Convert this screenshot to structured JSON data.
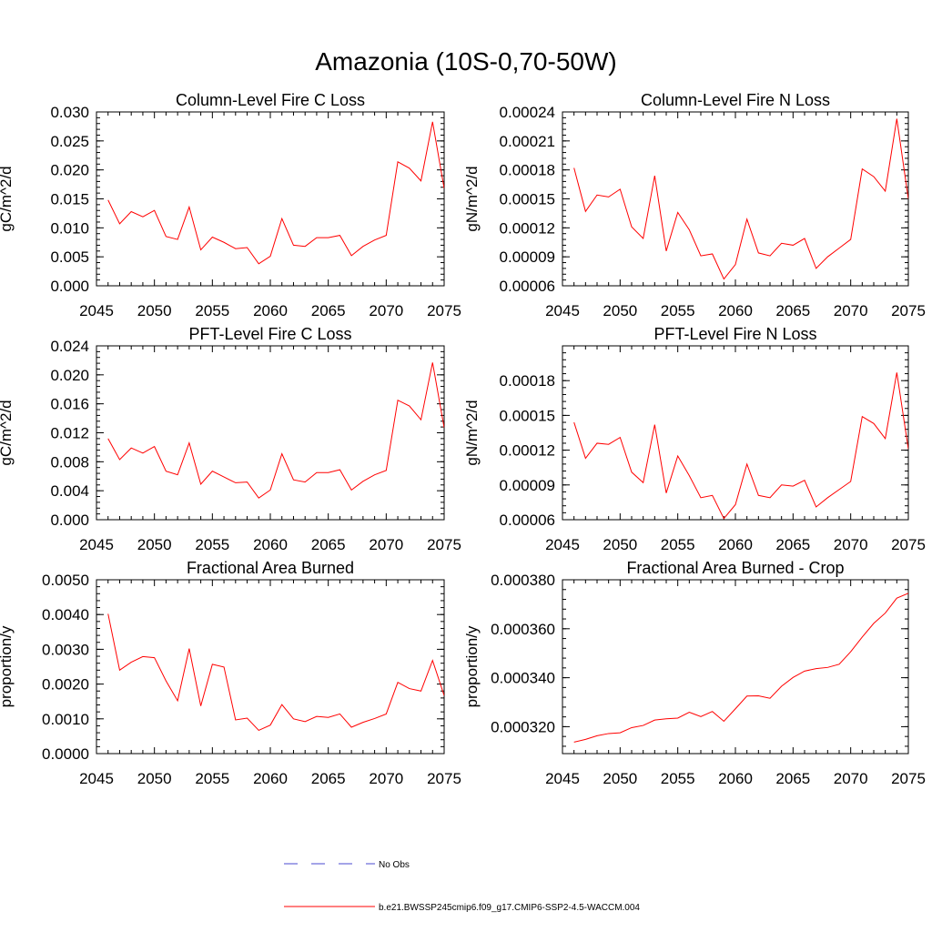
{
  "figure": {
    "title": "Amazonia (10S-0,70-50W)"
  },
  "legend": {
    "entries": [
      {
        "label": "No Obs",
        "color": "#4a4ad0",
        "style": "dashed"
      },
      {
        "label": "b.e21.BWSSP245cmip6.f09_g17.CMIP6-SSP2-4.5-WACCM.004",
        "color": "#ff0000",
        "style": "solid"
      }
    ]
  },
  "chart_data": [
    {
      "type": "line",
      "title": "Column-Level Fire C Loss",
      "ylabel": "gC/m^2/d",
      "xlim": [
        2045,
        2075
      ],
      "ylim": [
        0.0,
        0.03
      ],
      "x_ticks": [
        "2045",
        "2050",
        "2055",
        "2060",
        "2065",
        "2070",
        "2075"
      ],
      "y_ticks": [
        "0.000",
        "0.005",
        "0.010",
        "0.015",
        "0.020",
        "0.025",
        "0.030"
      ],
      "series": [
        {
          "color": "#ff0000",
          "x": [
            2046,
            2047,
            2048,
            2049,
            2050,
            2051,
            2052,
            2053,
            2054,
            2055,
            2056,
            2057,
            2058,
            2059,
            2060,
            2061,
            2062,
            2063,
            2064,
            2065,
            2066,
            2067,
            2068,
            2069,
            2070,
            2071,
            2072,
            2073,
            2074,
            2075
          ],
          "values": [
            0.0148,
            0.0107,
            0.0128,
            0.0119,
            0.013,
            0.0085,
            0.008,
            0.0136,
            0.0062,
            0.0084,
            0.0075,
            0.0064,
            0.0066,
            0.0038,
            0.0051,
            0.0116,
            0.007,
            0.0068,
            0.0083,
            0.0083,
            0.0087,
            0.0052,
            0.0068,
            0.0079,
            0.0087,
            0.0214,
            0.0203,
            0.0181,
            0.0283,
            0.0168
          ]
        }
      ]
    },
    {
      "type": "line",
      "title": "Column-Level Fire N Loss",
      "ylabel": "gN/m^2/d",
      "xlim": [
        2045,
        2075
      ],
      "ylim": [
        6e-05,
        0.00024
      ],
      "x_ticks": [
        "2045",
        "2050",
        "2055",
        "2060",
        "2065",
        "2070",
        "2075"
      ],
      "y_ticks": [
        "0.00006",
        "0.00009",
        "0.00012",
        "0.00015",
        "0.00018",
        "0.00021",
        "0.00024"
      ],
      "series": [
        {
          "color": "#ff0000",
          "x": [
            2046,
            2047,
            2048,
            2049,
            2050,
            2051,
            2052,
            2053,
            2054,
            2055,
            2056,
            2057,
            2058,
            2059,
            2060,
            2061,
            2062,
            2063,
            2064,
            2065,
            2066,
            2067,
            2068,
            2069,
            2070,
            2071,
            2072,
            2073,
            2074,
            2075
          ],
          "values": [
            0.000182,
            0.000137,
            0.000154,
            0.000152,
            0.00016,
            0.000121,
            0.000109,
            0.000174,
            9.6e-05,
            0.000136,
            0.000118,
            9.1e-05,
            9.3e-05,
            6.7e-05,
            8.2e-05,
            0.000129,
            9.4e-05,
            9.1e-05,
            0.000104,
            0.000102,
            0.000109,
            7.8e-05,
            9e-05,
            9.9e-05,
            0.000108,
            0.000181,
            0.000173,
            0.000158,
            0.000233,
            0.00015
          ]
        }
      ]
    },
    {
      "type": "line",
      "title": "PFT-Level Fire C Loss",
      "ylabel": "gC/m^2/d",
      "xlim": [
        2045,
        2075
      ],
      "ylim": [
        0.0,
        0.024
      ],
      "x_ticks": [
        "2045",
        "2050",
        "2055",
        "2060",
        "2065",
        "2070",
        "2075"
      ],
      "y_ticks": [
        "0.000",
        "0.004",
        "0.008",
        "0.012",
        "0.016",
        "0.020",
        "0.024"
      ],
      "series": [
        {
          "color": "#ff0000",
          "x": [
            2046,
            2047,
            2048,
            2049,
            2050,
            2051,
            2052,
            2053,
            2054,
            2055,
            2056,
            2057,
            2058,
            2059,
            2060,
            2061,
            2062,
            2063,
            2064,
            2065,
            2066,
            2067,
            2068,
            2069,
            2070,
            2071,
            2072,
            2073,
            2074,
            2075
          ],
          "values": [
            0.0112,
            0.0083,
            0.0099,
            0.0092,
            0.0101,
            0.0067,
            0.0062,
            0.0106,
            0.0049,
            0.0067,
            0.0059,
            0.0051,
            0.0052,
            0.003,
            0.0041,
            0.0091,
            0.0055,
            0.0052,
            0.0065,
            0.0065,
            0.0069,
            0.0041,
            0.0053,
            0.0062,
            0.0068,
            0.0165,
            0.0157,
            0.0138,
            0.0217,
            0.0127
          ]
        }
      ]
    },
    {
      "type": "line",
      "title": "PFT-Level Fire N Loss",
      "ylabel": "gN/m^2/d",
      "xlim": [
        2045,
        2075
      ],
      "ylim": [
        6e-05,
        0.00021
      ],
      "x_ticks": [
        "2045",
        "2050",
        "2055",
        "2060",
        "2065",
        "2070",
        "2075"
      ],
      "y_ticks": [
        "0.00006",
        "0.00009",
        "0.00012",
        "0.00015",
        "0.00018"
      ],
      "series": [
        {
          "color": "#ff0000",
          "x": [
            2046,
            2047,
            2048,
            2049,
            2050,
            2051,
            2052,
            2053,
            2054,
            2055,
            2056,
            2057,
            2058,
            2059,
            2060,
            2061,
            2062,
            2063,
            2064,
            2065,
            2066,
            2067,
            2068,
            2069,
            2070,
            2071,
            2072,
            2073,
            2074,
            2075
          ],
          "values": [
            0.000144,
            0.000113,
            0.000126,
            0.000125,
            0.000131,
            0.000101,
            9.2e-05,
            0.000142,
            8.3e-05,
            0.000115,
            9.8e-05,
            7.9e-05,
            8.1e-05,
            6.1e-05,
            7.3e-05,
            0.000108,
            8.1e-05,
            7.9e-05,
            9e-05,
            8.9e-05,
            9.4e-05,
            7.1e-05,
            7.9e-05,
            8.6e-05,
            9.3e-05,
            0.000149,
            0.000143,
            0.00013,
            0.000187,
            0.000121
          ]
        }
      ]
    },
    {
      "type": "line",
      "title": "Fractional Area Burned",
      "ylabel": "proportion/y",
      "xlim": [
        2045,
        2075
      ],
      "ylim": [
        0.0,
        0.005
      ],
      "x_ticks": [
        "2045",
        "2050",
        "2055",
        "2060",
        "2065",
        "2070",
        "2075"
      ],
      "y_ticks": [
        "0.0000",
        "0.0010",
        "0.0020",
        "0.0030",
        "0.0040",
        "0.0050"
      ],
      "series": [
        {
          "color": "#ff0000",
          "x": [
            2046,
            2047,
            2048,
            2049,
            2050,
            2051,
            2052,
            2053,
            2054,
            2055,
            2056,
            2057,
            2058,
            2059,
            2060,
            2061,
            2062,
            2063,
            2064,
            2065,
            2066,
            2067,
            2068,
            2069,
            2070,
            2071,
            2072,
            2073,
            2074,
            2075
          ],
          "values": [
            0.00402,
            0.0024,
            0.00263,
            0.00279,
            0.00276,
            0.00209,
            0.00152,
            0.00302,
            0.00137,
            0.00257,
            0.00249,
            0.00097,
            0.00102,
            0.00067,
            0.00082,
            0.00141,
            0.001,
            0.00092,
            0.00107,
            0.00104,
            0.00114,
            0.00076,
            0.0009,
            0.00101,
            0.00114,
            0.00205,
            0.00187,
            0.0018,
            0.00268,
            0.00167
          ]
        }
      ]
    },
    {
      "type": "line",
      "title": "Fractional Area Burned - Crop",
      "ylabel": "proportion/y",
      "xlim": [
        2045,
        2075
      ],
      "ylim": [
        0.000309,
        0.00038
      ],
      "x_ticks": [
        "2045",
        "2050",
        "2055",
        "2060",
        "2065",
        "2070",
        "2075"
      ],
      "y_ticks": [
        "0.000320",
        "0.000340",
        "0.000360",
        "0.000380"
      ],
      "series": [
        {
          "color": "#ff0000",
          "x": [
            2046,
            2047,
            2048,
            2049,
            2050,
            2051,
            2052,
            2053,
            2054,
            2055,
            2056,
            2057,
            2058,
            2059,
            2060,
            2061,
            2062,
            2063,
            2064,
            2065,
            2066,
            2067,
            2068,
            2069,
            2070,
            2071,
            2072,
            2073,
            2074,
            2075
          ],
          "values": [
            0.0003137,
            0.0003148,
            0.0003163,
            0.0003172,
            0.0003175,
            0.0003196,
            0.0003205,
            0.0003227,
            0.0003232,
            0.0003235,
            0.0003259,
            0.0003241,
            0.0003262,
            0.0003222,
            0.0003273,
            0.0003325,
            0.0003326,
            0.0003316,
            0.0003365,
            0.0003401,
            0.0003427,
            0.0003437,
            0.0003442,
            0.0003455,
            0.0003506,
            0.0003566,
            0.0003622,
            0.0003664,
            0.0003725,
            0.0003745
          ]
        }
      ]
    }
  ]
}
